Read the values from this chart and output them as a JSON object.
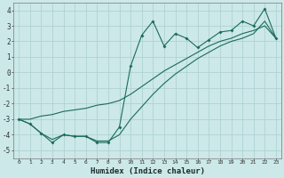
{
  "title": "",
  "xlabel": "Humidex (Indice chaleur)",
  "background_color": "#cce8e8",
  "grid_color": "#aacfcf",
  "line_color": "#1a6b5a",
  "x_data": [
    0,
    1,
    2,
    3,
    4,
    5,
    6,
    7,
    8,
    9,
    10,
    11,
    12,
    13,
    14,
    15,
    16,
    17,
    18,
    19,
    20,
    21,
    22,
    23
  ],
  "y_main": [
    -3.0,
    -3.3,
    -3.9,
    -4.5,
    -4.0,
    -4.1,
    -4.1,
    -4.5,
    -4.5,
    -3.5,
    0.4,
    2.4,
    3.3,
    1.7,
    2.5,
    2.2,
    1.6,
    2.1,
    2.6,
    2.7,
    3.3,
    3.0,
    4.1,
    2.2
  ],
  "y_upper": [
    -3.0,
    -3.0,
    -2.8,
    -2.7,
    -2.5,
    -2.4,
    -2.3,
    -2.1,
    -2.0,
    -1.8,
    -1.4,
    -0.9,
    -0.4,
    0.1,
    0.5,
    0.9,
    1.3,
    1.7,
    2.0,
    2.2,
    2.5,
    2.7,
    3.0,
    2.2
  ],
  "y_lower": [
    -3.0,
    -3.3,
    -3.9,
    -4.3,
    -4.0,
    -4.1,
    -4.1,
    -4.4,
    -4.4,
    -4.0,
    -3.0,
    -2.2,
    -1.4,
    -0.7,
    -0.1,
    0.4,
    0.9,
    1.3,
    1.7,
    2.0,
    2.2,
    2.5,
    3.3,
    2.2
  ],
  "ylim": [
    -5.5,
    4.5
  ],
  "xlim": [
    -0.5,
    23.5
  ],
  "yticks": [
    -5,
    -4,
    -3,
    -2,
    -1,
    0,
    1,
    2,
    3,
    4
  ],
  "xticks": [
    0,
    1,
    2,
    3,
    4,
    5,
    6,
    7,
    8,
    9,
    10,
    11,
    12,
    13,
    14,
    15,
    16,
    17,
    18,
    19,
    20,
    21,
    22,
    23
  ]
}
